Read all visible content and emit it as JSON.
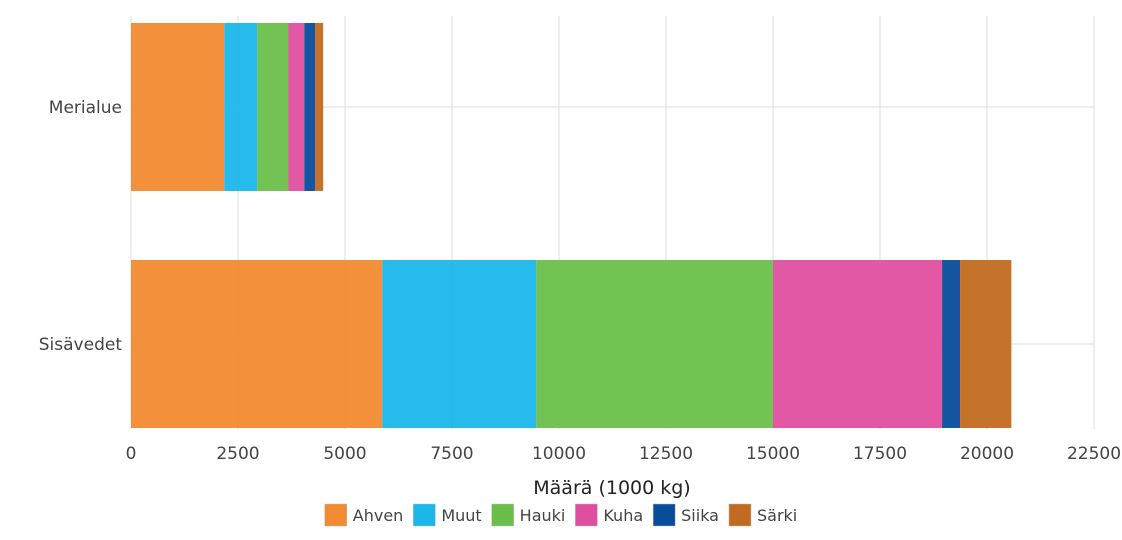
{
  "chart_data": {
    "type": "bar",
    "orientation": "horizontal",
    "stacked": true,
    "categories": [
      "Merialue",
      "Sisävedet"
    ],
    "series": [
      {
        "name": "Ahven",
        "color": "#f28a30",
        "values": [
          2180,
          5870
        ]
      },
      {
        "name": "Muut",
        "color": "#1ab7ea",
        "values": [
          770,
          3600
        ]
      },
      {
        "name": "Hauki",
        "color": "#6abf4b",
        "values": [
          730,
          5530
        ]
      },
      {
        "name": "Kuha",
        "color": "#e04f9f",
        "values": [
          370,
          3950
        ]
      },
      {
        "name": "Siika",
        "color": "#0a4c9c",
        "values": [
          250,
          420
        ]
      },
      {
        "name": "Särki",
        "color": "#c26a1f",
        "values": [
          190,
          1200
        ]
      }
    ],
    "xlabel": "Määrä (1000 kg)",
    "ylabel": "",
    "xlim": [
      0,
      22500
    ],
    "xticks": [
      "0",
      "2500",
      "5000",
      "7500",
      "10000",
      "12500",
      "15000",
      "17500",
      "20000",
      "22500"
    ],
    "grid": true,
    "legend_position": "bottom"
  }
}
